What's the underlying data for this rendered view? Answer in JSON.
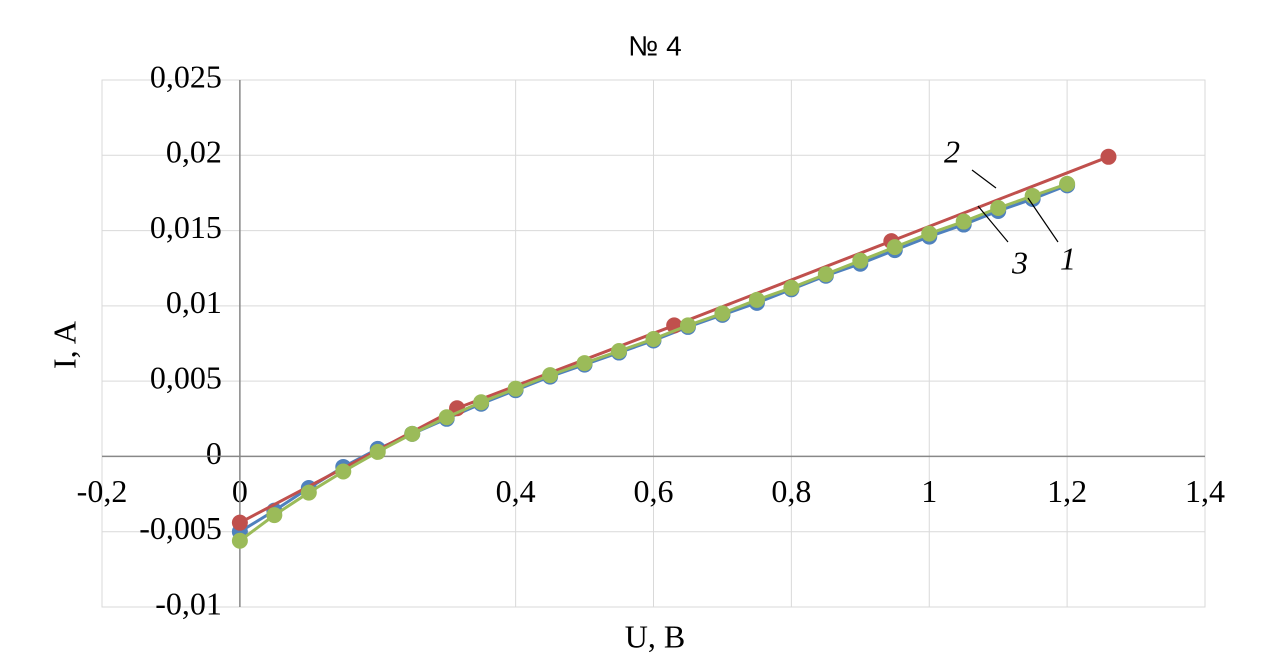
{
  "chart_data": {
    "type": "line",
    "title": "№ 4",
    "x_label": "U, B",
    "y_label": "I, A",
    "xlim": [
      -0.2,
      1.4
    ],
    "xticks": [
      {
        "value": -0.2,
        "label": "-0,2"
      },
      0,
      {
        "value": 0.4,
        "label": "0,4"
      },
      {
        "value": 0.6,
        "label": "0,6"
      },
      {
        "value": 0.8,
        "label": "0,8"
      },
      1,
      {
        "value": 1.2,
        "label": "1,2"
      },
      {
        "value": 1.4,
        "label": "1,4"
      }
    ],
    "ylim": [
      -0.01,
      0.025
    ],
    "yticks": [
      {
        "value": -0.01,
        "label": "-0,01"
      },
      {
        "value": -0.005,
        "label": "-0,005"
      },
      0,
      {
        "value": 0.005,
        "label": "0,005"
      },
      {
        "value": 0.01,
        "label": "0,01"
      },
      {
        "value": 0.015,
        "label": "0,015"
      },
      {
        "value": 0.02,
        "label": "0,02"
      },
      {
        "value": 0.025,
        "label": "0,025"
      }
    ],
    "grid": true,
    "series": [
      {
        "name": "1",
        "color": "#4f81bd",
        "x": [
          0,
          0.05,
          0.1,
          0.15,
          0.2,
          0.25,
          0.3,
          0.35,
          0.4,
          0.45,
          0.5,
          0.55,
          0.6,
          0.65,
          0.7,
          0.75,
          0.8,
          0.85,
          0.9,
          0.95,
          1.0,
          1.05,
          1.1,
          1.15,
          1.2
        ],
        "values": [
          -0.005,
          -0.0036,
          -0.0021,
          -0.0007,
          0.0005,
          0.0015,
          0.0025,
          0.0035,
          0.0044,
          0.0053,
          0.0061,
          0.0069,
          0.0077,
          0.0086,
          0.0094,
          0.0102,
          0.0111,
          0.012,
          0.0128,
          0.0137,
          0.0146,
          0.0154,
          0.0163,
          0.0171,
          0.018
        ]
      },
      {
        "name": "2",
        "color": "#c0504d",
        "x": [
          0,
          0.315,
          0.63,
          0.945,
          1.26
        ],
        "values": [
          -0.0044,
          0.0032,
          0.0087,
          0.0143,
          0.0199
        ]
      },
      {
        "name": "3",
        "color": "#9bbb59",
        "x": [
          0,
          0.05,
          0.1,
          0.15,
          0.2,
          0.25,
          0.3,
          0.35,
          0.4,
          0.45,
          0.5,
          0.55,
          0.6,
          0.65,
          0.7,
          0.75,
          0.8,
          0.85,
          0.9,
          0.95,
          1.0,
          1.05,
          1.1,
          1.15,
          1.2
        ],
        "values": [
          -0.0056,
          -0.0039,
          -0.0024,
          -0.001,
          0.0003,
          0.0015,
          0.0026,
          0.0036,
          0.0045,
          0.0054,
          0.0062,
          0.007,
          0.0078,
          0.0087,
          0.0095,
          0.0104,
          0.0112,
          0.0121,
          0.013,
          0.0139,
          0.0148,
          0.0156,
          0.0165,
          0.0173,
          0.0181
        ]
      }
    ]
  }
}
